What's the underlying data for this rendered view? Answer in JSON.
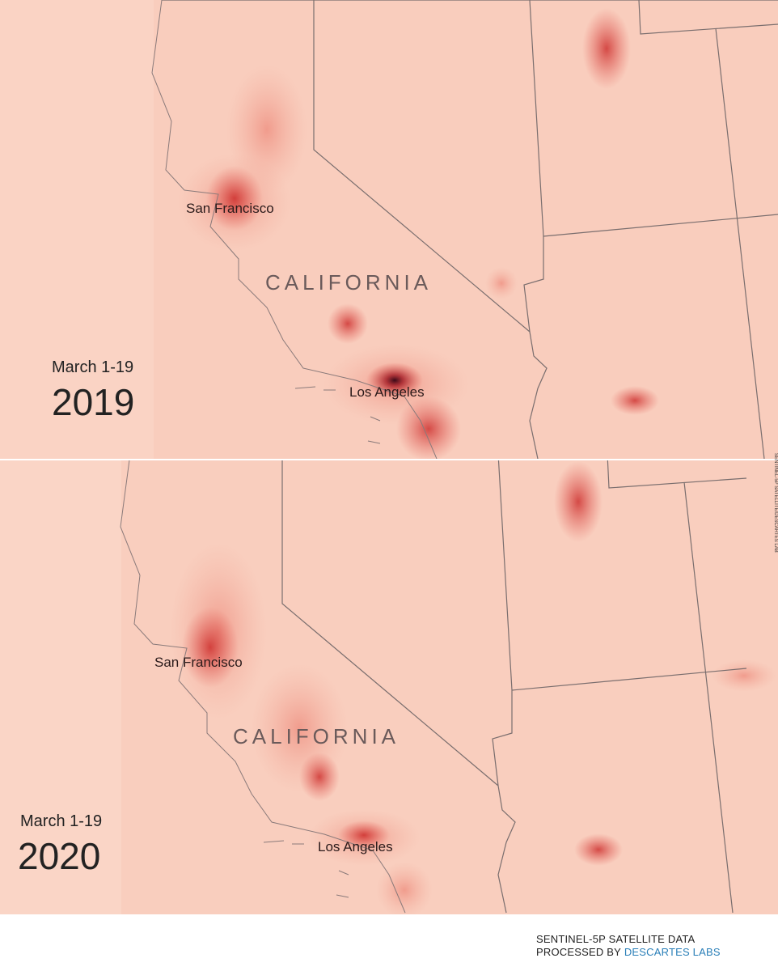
{
  "panels": [
    {
      "date_range": "March 1-19",
      "year": "2019",
      "labels": {
        "city_north": "San Francisco",
        "state": "CALIFORNIA",
        "city_south": "Los Angeles"
      }
    },
    {
      "date_range": "March 1-19",
      "year": "2020",
      "labels": {
        "city_north": "San Francisco",
        "state": "CALIFORNIA",
        "city_south": "Los Angeles"
      }
    }
  ],
  "side_credit": "SENTINEL-5P SATELLITE/DESCARTES LAB",
  "credit": {
    "line1": "SENTINEL-5P SATELLITE DATA",
    "line2_prefix": "PROCESSED BY",
    "line2_org": "DESCARTES LABS"
  }
}
